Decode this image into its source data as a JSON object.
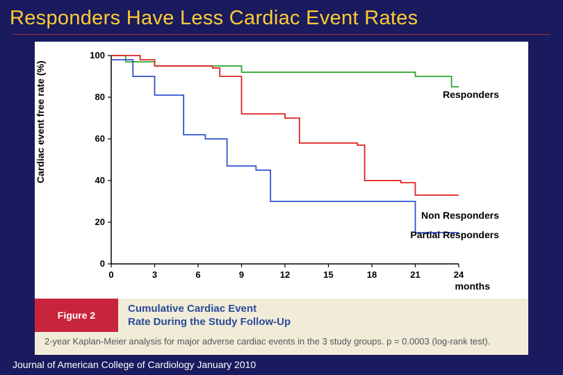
{
  "slide": {
    "title": "Responders Have Less Cardiac Event Rates",
    "footer": "Journal of American College of Cardiology January 2010",
    "background_color": "#1a1a5e",
    "title_color": "#ffcc33",
    "underline_color": "#a03030"
  },
  "chart": {
    "type": "kaplan-meier-step",
    "ylabel": "Cardiac event free rate (%)",
    "x_unit": "months",
    "xlim": [
      0,
      24
    ],
    "ylim": [
      0,
      100
    ],
    "xticks": [
      0,
      3,
      6,
      9,
      12,
      15,
      18,
      21,
      24
    ],
    "yticks": [
      0,
      20,
      40,
      60,
      80,
      100
    ],
    "tick_fontsize": 13,
    "tick_fontweight": "bold",
    "panel_bg": "#ffffff",
    "axis_color": "#000000",
    "line_width": 1.8,
    "series": [
      {
        "name": "Responders",
        "label": "Responders",
        "color": "#2aa52a",
        "points": [
          [
            0,
            100
          ],
          [
            1,
            97
          ],
          [
            3,
            95
          ],
          [
            9,
            92
          ],
          [
            21,
            90
          ],
          [
            23.5,
            85
          ]
        ],
        "label_pos": {
          "right": 42,
          "top": 68
        }
      },
      {
        "name": "Non Responders",
        "label": "Non Responders",
        "color": "#e02020",
        "points": [
          [
            0,
            100
          ],
          [
            2,
            98
          ],
          [
            3,
            95
          ],
          [
            7,
            94
          ],
          [
            7.5,
            90
          ],
          [
            9,
            72
          ],
          [
            12,
            70
          ],
          [
            13,
            58
          ],
          [
            17,
            57
          ],
          [
            17.5,
            40
          ],
          [
            20,
            39
          ],
          [
            21,
            33
          ],
          [
            24,
            33
          ]
        ],
        "label_pos": {
          "right": 42,
          "top": 242
        }
      },
      {
        "name": "Partial Responders",
        "label": "Partial Responders",
        "color": "#3050d0",
        "points": [
          [
            0,
            98
          ],
          [
            1.5,
            90
          ],
          [
            3,
            81
          ],
          [
            5,
            62
          ],
          [
            6.5,
            60
          ],
          [
            8,
            47
          ],
          [
            10,
            45
          ],
          [
            11,
            30
          ],
          [
            20,
            30
          ],
          [
            21,
            15
          ],
          [
            24,
            15
          ]
        ],
        "label_pos": {
          "right": 42,
          "top": 270
        }
      }
    ]
  },
  "caption": {
    "figure_label_bg": "#c8243c",
    "figure_label_color": "#ffffff",
    "figure_label": "Figure 2",
    "caption_bg": "#f0ecd8",
    "caption_color": "#2a4a9a",
    "caption_title": "Cumulative Cardiac Event\nRate During the Study Follow-Up",
    "note_color": "#555555",
    "note": "2-year Kaplan-Meier analysis for major adverse cardiac events in the 3 study groups. p = 0.0003 (log-rank test)."
  }
}
